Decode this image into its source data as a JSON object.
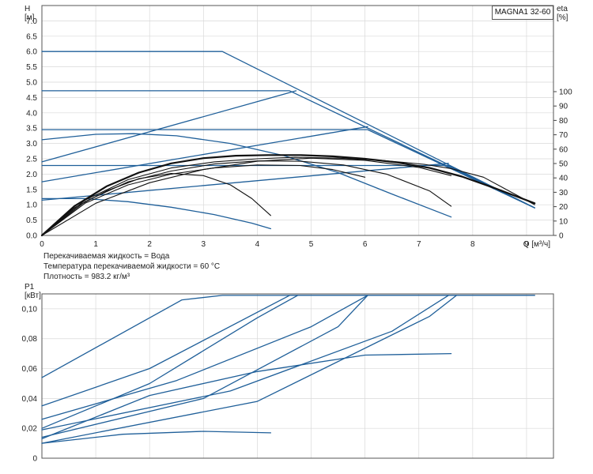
{
  "model_label": "MAGNA1 32-60",
  "notes": [
    "Перекачиваемая жидкость = Вода",
    "Температура перекачиваемой жидкости = 60 °C",
    "Плотность = 983.2 кг/м³"
  ],
  "colors": {
    "pump_curve": "#1f5f99",
    "efficiency_curve": "#111111",
    "grid": "#d9d9d9"
  },
  "chart_data": [
    {
      "type": "line",
      "title": "",
      "xlabel": "Q [м³/ч]",
      "ylabel_top": "H",
      "ylabel_unit": "[м]",
      "y2label_top": "eta",
      "y2label_unit": "[%]",
      "xlim": [
        0,
        9.5
      ],
      "ylim": [
        0,
        7.5
      ],
      "y2lim": [
        0,
        100
      ],
      "x_ticks": [
        "0",
        "1",
        "2",
        "3",
        "4",
        "5",
        "6",
        "7",
        "8",
        "9"
      ],
      "y_ticks": [
        "0.0",
        "0.5",
        "1.0",
        "1.5",
        "2.0",
        "2.5",
        "3.0",
        "3.5",
        "4.0",
        "4.5",
        "5.0",
        "5.5",
        "6.0",
        "6.5",
        "7.0"
      ],
      "y2_ticks": [
        "0",
        "10",
        "20",
        "30",
        "40",
        "50",
        "60",
        "70",
        "80",
        "90",
        "100"
      ],
      "grid": true,
      "series": [
        {
          "kind": "head",
          "x": [
            0,
            3.35,
            9.15
          ],
          "y": [
            6.0,
            6.0,
            0.9
          ]
        },
        {
          "kind": "head",
          "x": [
            0,
            4.6,
            9.15
          ],
          "y": [
            4.72,
            4.72,
            0.9
          ]
        },
        {
          "kind": "head",
          "x": [
            0,
            6.05,
            9.15
          ],
          "y": [
            3.45,
            3.45,
            0.9
          ]
        },
        {
          "kind": "head",
          "x": [
            0,
            7.55,
            9.15
          ],
          "y": [
            2.28,
            2.28,
            0.9
          ]
        },
        {
          "kind": "head",
          "x": [
            0,
            0.8,
            1.6,
            2.4,
            3.2,
            3.9,
            4.25
          ],
          "y": [
            1.2,
            1.2,
            1.1,
            0.92,
            0.68,
            0.4,
            0.22
          ]
        },
        {
          "kind": "head",
          "x": [
            0,
            1.0,
            1.7,
            2.5,
            3.5,
            4.5,
            5.5,
            6.5,
            7.6
          ],
          "y": [
            3.12,
            3.3,
            3.32,
            3.25,
            3.0,
            2.6,
            2.05,
            1.35,
            0.6
          ]
        },
        {
          "kind": "head",
          "x": [
            0,
            4.72
          ],
          "y": [
            2.4,
            4.72
          ]
        },
        {
          "kind": "head",
          "x": [
            0,
            6.05
          ],
          "y": [
            1.75,
            3.55
          ]
        },
        {
          "kind": "head",
          "x": [
            0,
            7.55
          ],
          "y": [
            1.15,
            2.35
          ]
        },
        {
          "kind": "efficiency",
          "x": [
            0,
            0.8,
            1.6,
            2.4,
            3.2,
            4.0,
            4.7,
            5.5,
            6.3,
            7.1,
            7.6,
            8.2,
            9.15
          ],
          "y": [
            0,
            1.15,
            1.82,
            2.2,
            2.4,
            2.5,
            2.55,
            2.52,
            2.45,
            2.32,
            2.18,
            1.9,
            1.0
          ]
        },
        {
          "kind": "efficiency",
          "x": [
            0,
            0.6,
            1.2,
            1.8,
            2.4,
            3.0,
            3.6,
            4.2,
            4.8,
            5.4,
            6.0,
            6.6,
            7.2,
            7.8,
            8.4,
            9.15
          ],
          "y": [
            0,
            0.95,
            1.6,
            2.05,
            2.35,
            2.52,
            2.6,
            2.62,
            2.62,
            2.58,
            2.5,
            2.38,
            2.2,
            1.92,
            1.55,
            1.05
          ]
        },
        {
          "kind": "efficiency",
          "x": [
            0,
            0.8,
            1.6,
            2.4,
            3.2,
            4.0,
            4.8,
            5.6,
            6.4,
            7.2,
            7.6
          ],
          "y": [
            0,
            1.1,
            1.75,
            2.1,
            2.33,
            2.43,
            2.42,
            2.3,
            2.0,
            1.45,
            0.95
          ]
        },
        {
          "kind": "efficiency",
          "x": [
            0,
            0.8,
            1.6,
            2.4,
            3.2,
            4.0,
            4.8,
            5.4,
            6.0
          ],
          "y": [
            0,
            1.05,
            1.65,
            2.0,
            2.2,
            2.3,
            2.28,
            2.15,
            1.9
          ]
        },
        {
          "kind": "efficiency",
          "x": [
            0,
            0.6,
            1.2,
            1.8,
            2.4,
            3.0,
            3.5,
            3.9,
            4.25
          ],
          "y": [
            0,
            0.9,
            1.45,
            1.85,
            2.02,
            1.95,
            1.65,
            1.2,
            0.65
          ]
        },
        {
          "kind": "efficiency",
          "x": [
            0,
            1.0,
            2.0,
            3.0,
            4.0,
            5.0,
            6.0,
            7.0,
            7.6
          ],
          "y": [
            0,
            1.05,
            1.72,
            2.15,
            2.42,
            2.52,
            2.45,
            2.22,
            1.95
          ]
        }
      ]
    },
    {
      "type": "line",
      "title": "",
      "xlabel": "",
      "ylabel_top": "P1",
      "ylabel_unit": "[кВт]",
      "xlim": [
        0,
        9.5
      ],
      "ylim": [
        0,
        0.11
      ],
      "y_ticks": [
        "0",
        "0,02",
        "0,04",
        "0,06",
        "0,08",
        "0,10"
      ],
      "grid": true,
      "series": [
        {
          "kind": "power",
          "x": [
            0,
            2.6,
            3.35,
            9.15
          ],
          "y": [
            0.054,
            0.106,
            0.109,
            0.109
          ]
        },
        {
          "kind": "power",
          "x": [
            0,
            2.0,
            4.6,
            9.15
          ],
          "y": [
            0.035,
            0.06,
            0.109,
            0.109
          ]
        },
        {
          "kind": "power",
          "x": [
            0,
            2.0,
            4.0,
            4.75
          ],
          "y": [
            0.02,
            0.05,
            0.094,
            0.109
          ]
        },
        {
          "kind": "power",
          "x": [
            0,
            2.5,
            5.0,
            6.05
          ],
          "y": [
            0.026,
            0.052,
            0.088,
            0.109
          ]
        },
        {
          "kind": "power",
          "x": [
            0,
            3.0,
            5.5,
            6.05
          ],
          "y": [
            0.014,
            0.04,
            0.088,
            0.109
          ]
        },
        {
          "kind": "power",
          "x": [
            0,
            3.5,
            6.5,
            7.55
          ],
          "y": [
            0.019,
            0.045,
            0.085,
            0.109
          ]
        },
        {
          "kind": "power",
          "x": [
            0,
            4.0,
            7.2,
            7.7
          ],
          "y": [
            0.01,
            0.038,
            0.095,
            0.109
          ]
        },
        {
          "kind": "power",
          "x": [
            0,
            2.0,
            4.0,
            6.0,
            7.6
          ],
          "y": [
            0.013,
            0.042,
            0.058,
            0.069,
            0.07
          ]
        },
        {
          "kind": "power",
          "x": [
            0,
            1.5,
            3.0,
            4.25
          ],
          "y": [
            0.01,
            0.016,
            0.018,
            0.017
          ]
        }
      ]
    }
  ]
}
